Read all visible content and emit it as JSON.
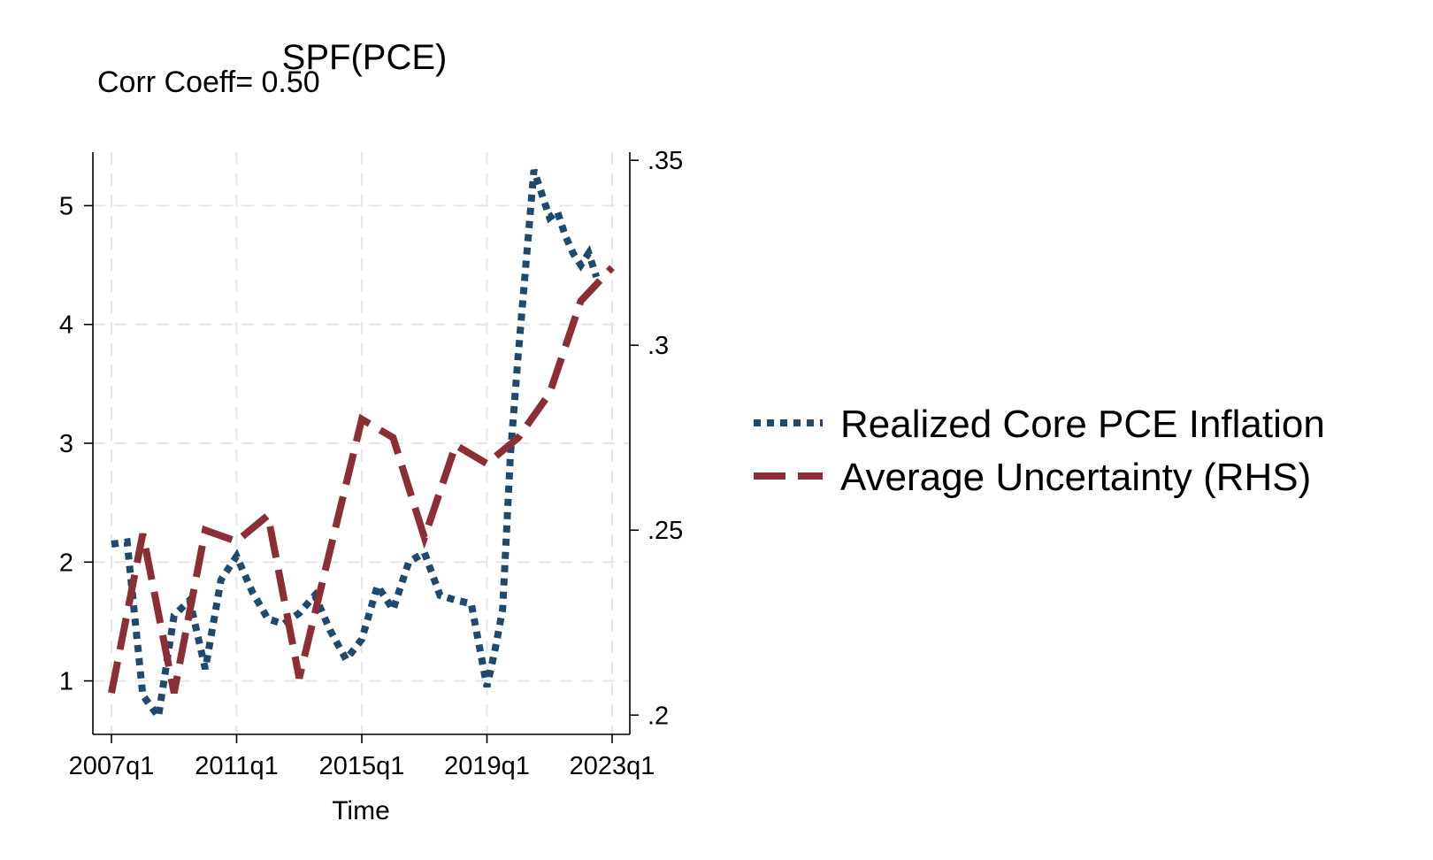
{
  "chart_data": {
    "type": "line",
    "title": "SPF(PCE)",
    "subtitle": "Corr Coeff= 0.50",
    "xlabel": "Time",
    "x_ticks": [
      "2007q1",
      "2011q1",
      "2015q1",
      "2019q1",
      "2023q1"
    ],
    "x_range": [
      2007.0,
      2023.0
    ],
    "y_left": {
      "ticks": [
        "1",
        "2",
        "3",
        "4",
        "5"
      ],
      "tick_values": [
        1,
        2,
        3,
        4,
        5
      ],
      "range": [
        0.55,
        5.45
      ]
    },
    "y_right": {
      "ticks": [
        ".2",
        ".25",
        ".3",
        ".35"
      ],
      "tick_values": [
        0.2,
        0.25,
        0.3,
        0.35
      ],
      "range": [
        0.1948,
        0.3522
      ]
    },
    "grid": true,
    "legend_position": "right",
    "series": [
      {
        "name": "Realized Core PCE Inflation",
        "axis": "left",
        "style": "dotted",
        "color": "#1f4a6e",
        "x": [
          2007.0,
          2007.5,
          2008.0,
          2008.5,
          2009.0,
          2009.5,
          2010.0,
          2010.5,
          2011.0,
          2011.5,
          2012.0,
          2012.5,
          2013.0,
          2013.5,
          2014.0,
          2014.5,
          2015.0,
          2015.5,
          2016.0,
          2016.5,
          2017.0,
          2017.5,
          2018.0,
          2018.5,
          2019.0,
          2019.25,
          2019.5,
          2019.75,
          2020.0,
          2020.5,
          2021.0,
          2021.25,
          2021.5,
          2021.75,
          2022.0,
          2022.25,
          2022.5
        ],
        "y": [
          2.15,
          2.17,
          0.88,
          0.7,
          1.55,
          1.68,
          1.1,
          1.85,
          2.05,
          1.75,
          1.52,
          1.48,
          1.57,
          1.72,
          1.42,
          1.18,
          1.35,
          1.8,
          1.6,
          2.0,
          2.08,
          1.72,
          1.68,
          1.65,
          0.95,
          1.25,
          1.6,
          2.9,
          3.75,
          5.3,
          4.9,
          4.95,
          4.75,
          4.6,
          4.5,
          4.6,
          4.4
        ]
      },
      {
        "name": "Average Uncertainty (RHS)",
        "axis": "right",
        "style": "dashed",
        "color": "#8b2e35",
        "x": [
          2007.0,
          2008.0,
          2009.0,
          2010.0,
          2011.0,
          2012.0,
          2013.0,
          2014.0,
          2015.0,
          2016.0,
          2017.0,
          2018.0,
          2019.0,
          2020.0,
          2021.0,
          2022.0,
          2023.0
        ],
        "y": [
          0.206,
          0.249,
          0.206,
          0.25,
          0.247,
          0.254,
          0.21,
          0.245,
          0.28,
          0.275,
          0.248,
          0.273,
          0.268,
          0.275,
          0.287,
          0.312,
          0.321
        ]
      }
    ]
  }
}
